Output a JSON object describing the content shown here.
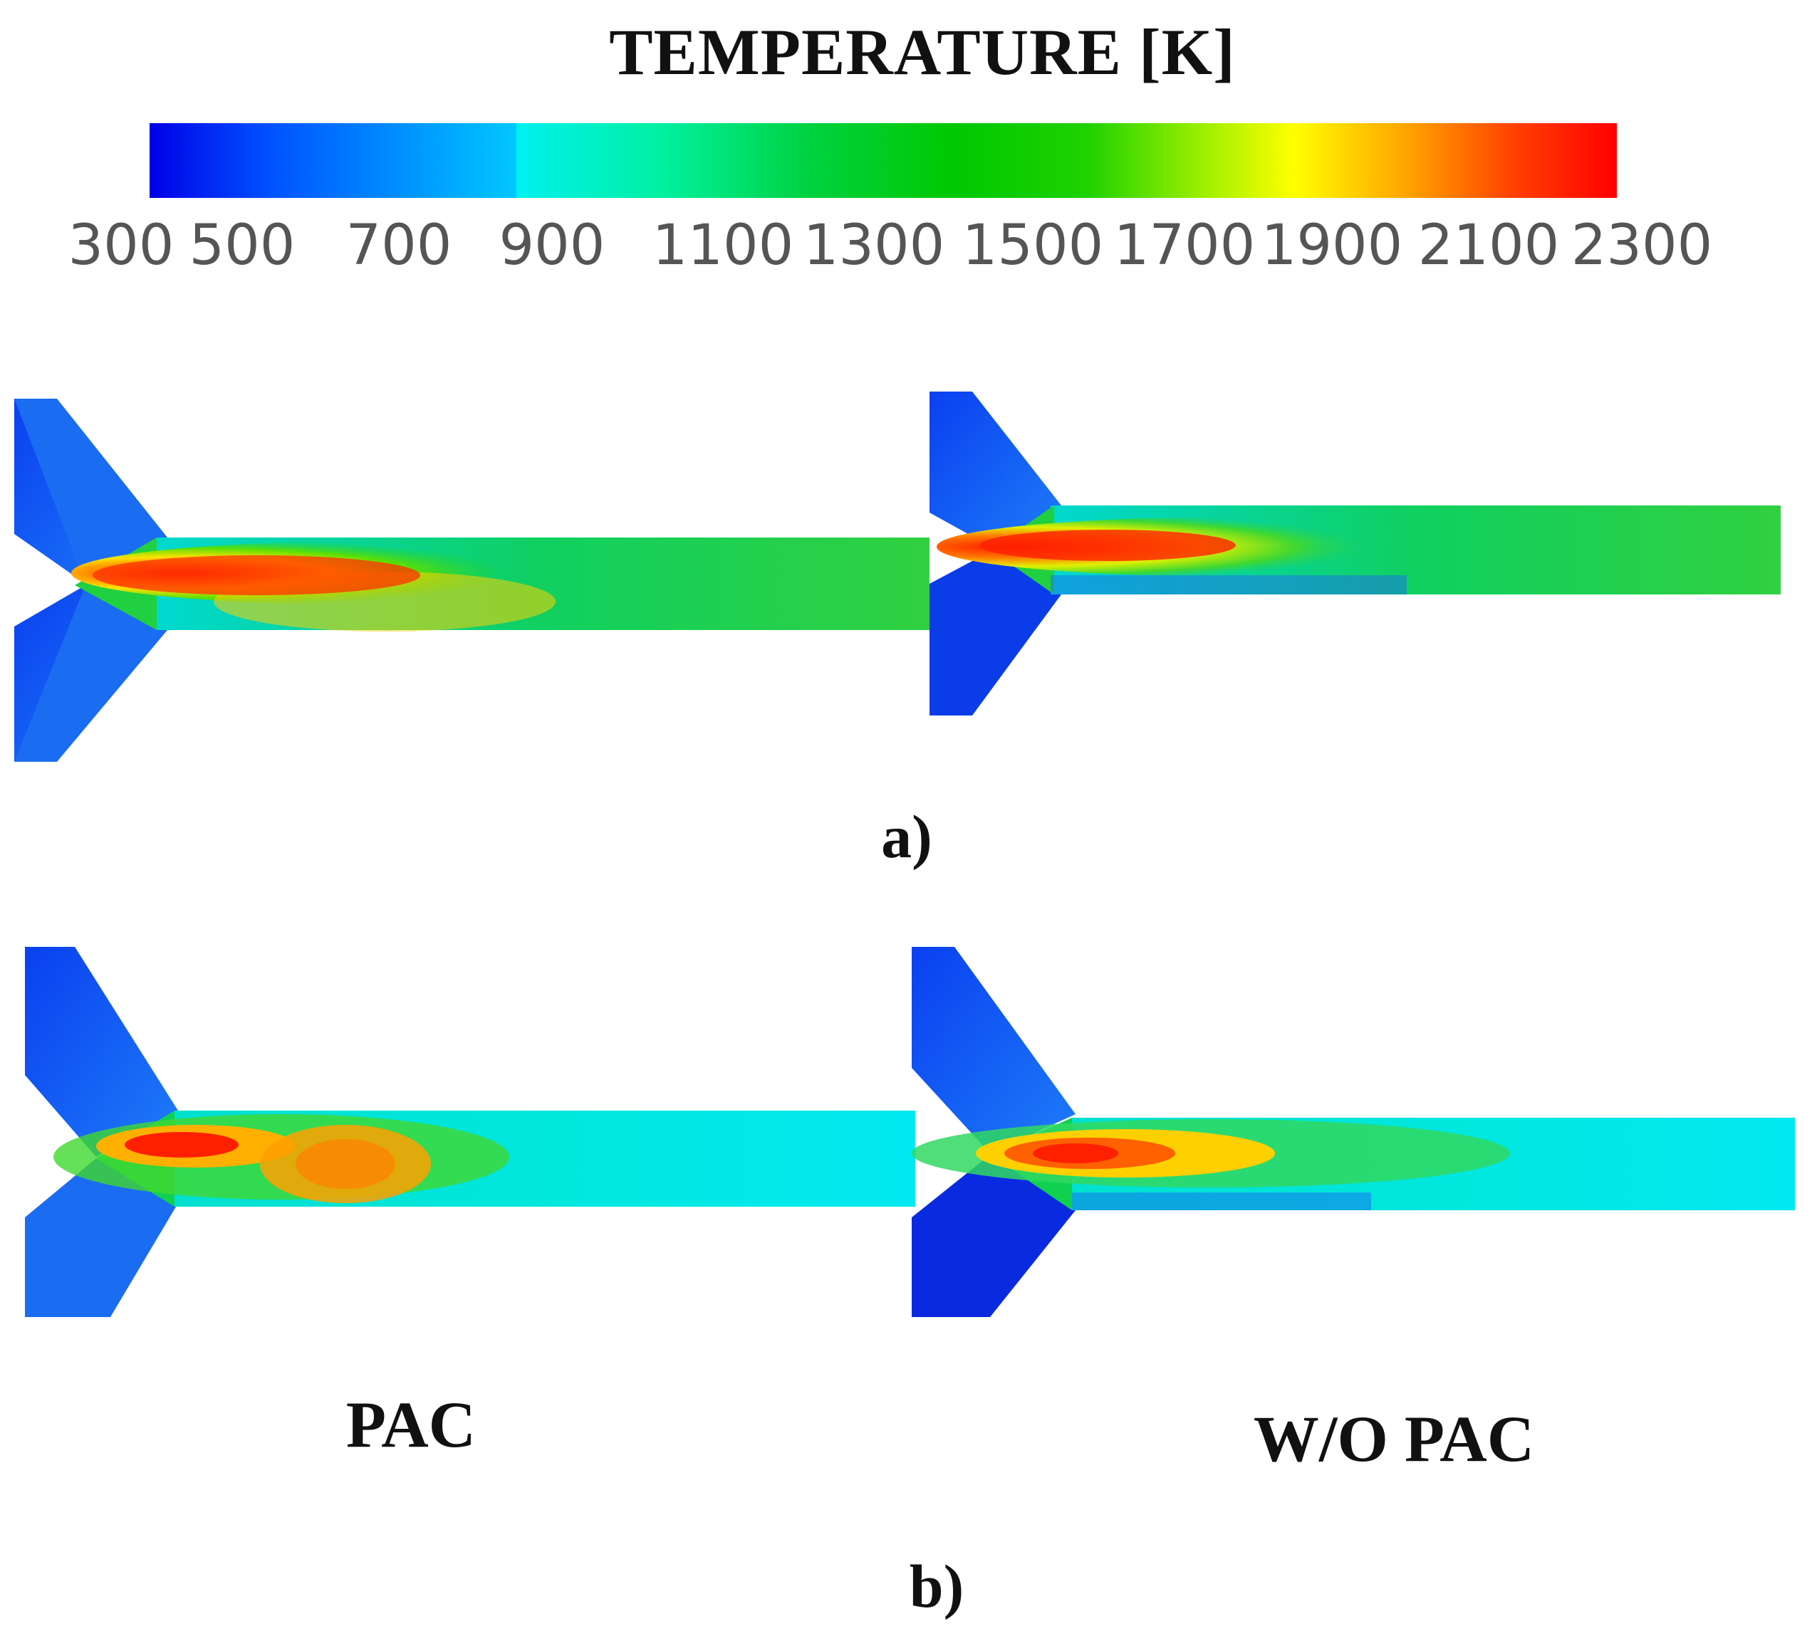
{
  "colorbar": {
    "title": "TEMPERATURE [K]",
    "ticks": [
      "300",
      "500",
      "700",
      "900",
      "1100",
      "1300",
      "1500",
      "1700",
      "1900",
      "2100",
      "2300"
    ],
    "range": [
      300,
      2300
    ],
    "unit": "K",
    "colormap": [
      "#0000ff",
      "#00e5ff",
      "#00c800",
      "#ffff00",
      "#ff0000"
    ]
  },
  "rows": [
    {
      "label": "a)"
    },
    {
      "label": "b)"
    }
  ],
  "cases": {
    "pac": "PAC",
    "wo_pac": "W/O PAC"
  }
}
